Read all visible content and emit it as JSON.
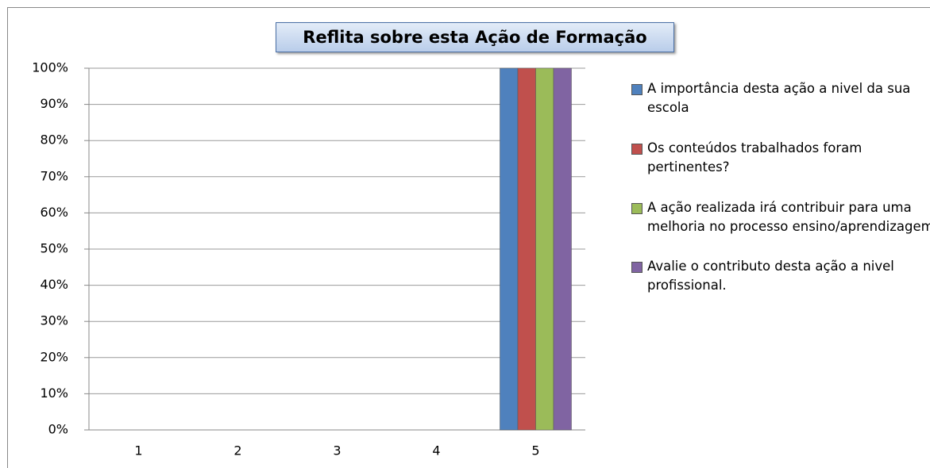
{
  "chart_data": {
    "type": "bar",
    "title": "Reflita sobre esta Ação de Formação",
    "categories": [
      "1",
      "2",
      "3",
      "4",
      "5"
    ],
    "series": [
      {
        "name": "A importância desta ação a nivel da sua escola",
        "color": "#4f81bd",
        "values": [
          0,
          0,
          0,
          0,
          100
        ]
      },
      {
        "name": "Os conteúdos trabalhados foram pertinentes?",
        "color": "#c0504d",
        "values": [
          0,
          0,
          0,
          0,
          100
        ]
      },
      {
        "name": "A ação realizada irá contribuir para uma melhoria no processo ensino/aprendizagem?",
        "color": "#9bbb59",
        "values": [
          0,
          0,
          0,
          0,
          100
        ]
      },
      {
        "name": "Avalie o contributo desta ação a nivel profissional.",
        "color": "#8064a2",
        "values": [
          0,
          0,
          0,
          0,
          100
        ]
      }
    ],
    "ylim": [
      0,
      100
    ],
    "yticks": [
      {
        "value": 0,
        "label": "0%"
      },
      {
        "value": 10,
        "label": "10%"
      },
      {
        "value": 20,
        "label": "20%"
      },
      {
        "value": 30,
        "label": "30%"
      },
      {
        "value": 40,
        "label": "40%"
      },
      {
        "value": 50,
        "label": "50%"
      },
      {
        "value": 60,
        "label": "60%"
      },
      {
        "value": 70,
        "label": "70%"
      },
      {
        "value": 80,
        "label": "80%"
      },
      {
        "value": 90,
        "label": "90%"
      },
      {
        "value": 100,
        "label": "100%"
      }
    ],
    "grid": true,
    "legend": "right"
  }
}
